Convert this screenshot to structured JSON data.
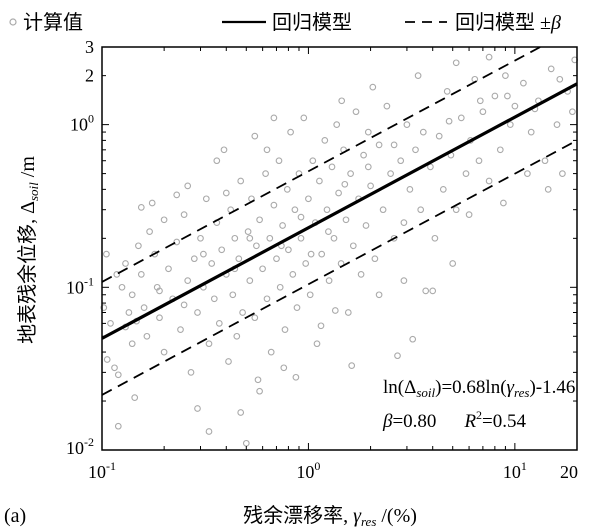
{
  "panel_label": "(a)",
  "chart_data": {
    "type": "scatter",
    "xscale": "log",
    "yscale": "log",
    "xlim": [
      0.1,
      20
    ],
    "ylim": [
      0.01,
      3
    ],
    "xlabel_main": "残余漂移率, ",
    "xlabel_sym": "γ",
    "xlabel_sub": "res",
    "xlabel_unit": " /(%)",
    "ylabel_main": "地表残余位移, ",
    "ylabel_sym": "Δ",
    "ylabel_sub": "soil",
    "ylabel_unit": " /m",
    "xticks": [
      {
        "value": 0.1,
        "base": "10",
        "exp": "-1"
      },
      {
        "value": 1,
        "base": "10",
        "exp": "0"
      },
      {
        "value": 10,
        "base": "10",
        "exp": "1"
      },
      {
        "value": 20,
        "base": "20",
        "exp": ""
      }
    ],
    "yticks": [
      {
        "value": 0.01,
        "base": "10",
        "exp": "-2"
      },
      {
        "value": 0.1,
        "base": "10",
        "exp": "-1"
      },
      {
        "value": 1,
        "base": "10",
        "exp": "0"
      },
      {
        "value": 2,
        "base": "2",
        "exp": ""
      },
      {
        "value": 3,
        "base": "3",
        "exp": ""
      }
    ],
    "legend": [
      {
        "key": "scatter",
        "label": "计算值"
      },
      {
        "key": "regression",
        "label": "回归模型"
      },
      {
        "key": "band",
        "label": "回归模型 ±",
        "suffix": "β"
      }
    ],
    "regression": {
      "slope": 0.68,
      "intercept": -1.46,
      "beta": 0.8,
      "r2": 0.54
    },
    "equation": {
      "p1": "ln(Δ",
      "s1": "soil",
      "p2": ")=0.68ln(",
      "p3": "γ",
      "s2": "res",
      "p4": ")-1.46",
      "beta_sym": "β",
      "beta_val": "=0.80",
      "r_sym": "R",
      "r_sup": "2",
      "r_val": "=0.54"
    },
    "point_color": "#aaaaaa",
    "line_color": "#000000",
    "points": [
      [
        0.12,
        0.029
      ],
      [
        0.13,
        0.057
      ],
      [
        0.14,
        0.09
      ],
      [
        0.105,
        0.16
      ],
      [
        0.11,
        0.06
      ],
      [
        0.115,
        0.032
      ],
      [
        0.12,
        0.014
      ],
      [
        0.125,
        0.1
      ],
      [
        0.13,
        0.14
      ],
      [
        0.135,
        0.07
      ],
      [
        0.14,
        0.045
      ],
      [
        0.15,
        0.18
      ],
      [
        0.155,
        0.12
      ],
      [
        0.16,
        0.075
      ],
      [
        0.165,
        0.05
      ],
      [
        0.17,
        0.22
      ],
      [
        0.18,
        0.16
      ],
      [
        0.185,
        0.1
      ],
      [
        0.19,
        0.065
      ],
      [
        0.2,
        0.04
      ],
      [
        0.21,
        0.13
      ],
      [
        0.22,
        0.085
      ],
      [
        0.23,
        0.19
      ],
      [
        0.24,
        0.055
      ],
      [
        0.25,
        0.28
      ],
      [
        0.26,
        0.11
      ],
      [
        0.27,
        0.03
      ],
      [
        0.28,
        0.15
      ],
      [
        0.29,
        0.07
      ],
      [
        0.3,
        0.2
      ],
      [
        0.31,
        0.1
      ],
      [
        0.32,
        0.35
      ],
      [
        0.33,
        0.045
      ],
      [
        0.34,
        0.14
      ],
      [
        0.35,
        0.085
      ],
      [
        0.36,
        0.25
      ],
      [
        0.37,
        0.06
      ],
      [
        0.38,
        0.17
      ],
      [
        0.39,
        0.7
      ],
      [
        0.4,
        0.12
      ],
      [
        0.41,
        0.035
      ],
      [
        0.42,
        0.3
      ],
      [
        0.43,
        0.09
      ],
      [
        0.44,
        0.2
      ],
      [
        0.45,
        0.05
      ],
      [
        0.46,
        0.15
      ],
      [
        0.47,
        0.45
      ],
      [
        0.48,
        0.07
      ],
      [
        0.5,
        0.011
      ],
      [
        0.51,
        0.22
      ],
      [
        0.52,
        0.11
      ],
      [
        0.53,
        0.35
      ],
      [
        0.55,
        0.065
      ],
      [
        0.56,
        0.18
      ],
      [
        0.57,
        0.027
      ],
      [
        0.58,
        0.26
      ],
      [
        0.6,
        0.13
      ],
      [
        0.62,
        0.5
      ],
      [
        0.63,
        0.085
      ],
      [
        0.65,
        0.2
      ],
      [
        0.66,
        0.04
      ],
      [
        0.68,
        0.32
      ],
      [
        0.7,
        0.15
      ],
      [
        0.72,
        0.6
      ],
      [
        0.73,
        0.1
      ],
      [
        0.75,
        0.24
      ],
      [
        0.77,
        0.055
      ],
      [
        0.79,
        0.4
      ],
      [
        0.8,
        0.17
      ],
      [
        0.82,
        0.9
      ],
      [
        0.84,
        0.12
      ],
      [
        0.86,
        0.3
      ],
      [
        0.88,
        0.075
      ],
      [
        0.9,
        0.5
      ],
      [
        0.92,
        0.2
      ],
      [
        0.95,
        1.1
      ],
      [
        0.97,
        0.14
      ],
      [
        1.0,
        0.35
      ],
      [
        1.02,
        0.09
      ],
      [
        1.05,
        0.6
      ],
      [
        1.08,
        0.25
      ],
      [
        1.1,
        0.045
      ],
      [
        1.13,
        0.45
      ],
      [
        1.16,
        0.16
      ],
      [
        1.2,
        0.8
      ],
      [
        1.23,
        0.3
      ],
      [
        1.26,
        0.11
      ],
      [
        1.3,
        0.55
      ],
      [
        1.33,
        0.2
      ],
      [
        1.37,
        1.0
      ],
      [
        1.4,
        0.38
      ],
      [
        1.44,
        0.14
      ],
      [
        1.48,
        0.7
      ],
      [
        1.52,
        0.26
      ],
      [
        1.56,
        0.07
      ],
      [
        1.6,
        0.5
      ],
      [
        1.65,
        0.18
      ],
      [
        1.7,
        1.2
      ],
      [
        1.75,
        0.35
      ],
      [
        1.8,
        0.12
      ],
      [
        1.85,
        0.65
      ],
      [
        1.9,
        0.24
      ],
      [
        1.95,
        0.9
      ],
      [
        2.0,
        0.42
      ],
      [
        2.1,
        0.15
      ],
      [
        2.2,
        0.75
      ],
      [
        2.3,
        0.3
      ],
      [
        2.4,
        1.3
      ],
      [
        2.5,
        0.5
      ],
      [
        2.6,
        0.2
      ],
      [
        2.7,
        0.038
      ],
      [
        2.8,
        0.6
      ],
      [
        2.9,
        0.25
      ],
      [
        3.0,
        1.0
      ],
      [
        3.1,
        0.4
      ],
      [
        3.2,
        0.048
      ],
      [
        3.3,
        0.7
      ],
      [
        3.5,
        0.3
      ],
      [
        3.7,
        0.095
      ],
      [
        3.9,
        0.55
      ],
      [
        4.1,
        0.2
      ],
      [
        4.3,
        0.85
      ],
      [
        4.5,
        0.4
      ],
      [
        4.7,
        1.6
      ],
      [
        4.9,
        0.65
      ],
      [
        5.2,
        0.3
      ],
      [
        5.5,
        1.1
      ],
      [
        5.8,
        0.5
      ],
      [
        6.1,
        0.8
      ],
      [
        6.4,
        1.9
      ],
      [
        6.7,
        0.6
      ],
      [
        7.0,
        1.2
      ],
      [
        7.5,
        0.45
      ],
      [
        8.0,
        1.5
      ],
      [
        8.5,
        0.7
      ],
      [
        9.0,
        2.0
      ],
      [
        9.5,
        1.0
      ],
      [
        10.0,
        1.3
      ],
      [
        11.0,
        1.8
      ],
      [
        12.0,
        0.9
      ],
      [
        13.0,
        1.4
      ],
      [
        14.0,
        0.6
      ],
      [
        15.0,
        2.2
      ],
      [
        16.0,
        1.0
      ],
      [
        17.0,
        0.5
      ],
      [
        18.0,
        1.6
      ],
      [
        19.0,
        1.2
      ],
      [
        19.5,
        2.5
      ],
      [
        0.106,
        0.036
      ],
      [
        0.144,
        0.021
      ],
      [
        0.155,
        0.31
      ],
      [
        0.2,
        0.26
      ],
      [
        0.29,
        0.018
      ],
      [
        0.33,
        0.013
      ],
      [
        0.47,
        0.017
      ],
      [
        0.58,
        0.023
      ],
      [
        0.76,
        0.032
      ],
      [
        0.87,
        0.028
      ],
      [
        1.15,
        0.058
      ],
      [
        1.35,
        0.072
      ],
      [
        4.0,
        0.095
      ],
      [
        5.0,
        0.14
      ],
      [
        1.62,
        0.033
      ],
      [
        0.26,
        0.42
      ],
      [
        0.36,
        0.6
      ],
      [
        0.55,
        0.85
      ],
      [
        0.68,
        1.1
      ],
      [
        1.45,
        1.4
      ],
      [
        2.05,
        1.7
      ],
      [
        3.4,
        2.0
      ],
      [
        5.2,
        2.4
      ],
      [
        7.5,
        2.6
      ],
      [
        0.175,
        0.33
      ],
      [
        0.23,
        0.37
      ],
      [
        0.4,
        0.38
      ],
      [
        0.63,
        0.7
      ],
      [
        0.92,
        0.27
      ],
      [
        1.25,
        0.22
      ],
      [
        2.2,
        0.09
      ],
      [
        2.9,
        0.11
      ],
      [
        6.0,
        0.28
      ],
      [
        8.8,
        0.33
      ],
      [
        11.5,
        0.5
      ],
      [
        14.5,
        0.4
      ],
      [
        0.102,
        0.075
      ],
      [
        0.118,
        0.12
      ],
      [
        0.147,
        0.062
      ],
      [
        0.19,
        0.095
      ],
      [
        0.25,
        0.078
      ],
      [
        0.31,
        0.16
      ],
      [
        0.44,
        0.13
      ],
      [
        0.52,
        0.2
      ],
      [
        0.74,
        0.18
      ],
      [
        1.03,
        0.16
      ],
      [
        1.5,
        0.43
      ],
      [
        1.95,
        0.55
      ],
      [
        2.6,
        0.75
      ],
      [
        3.6,
        0.9
      ],
      [
        4.8,
        1.05
      ],
      [
        6.8,
        1.4
      ],
      [
        9.2,
        1.5
      ],
      [
        12.5,
        1.25
      ],
      [
        16.5,
        1.9
      ]
    ]
  }
}
